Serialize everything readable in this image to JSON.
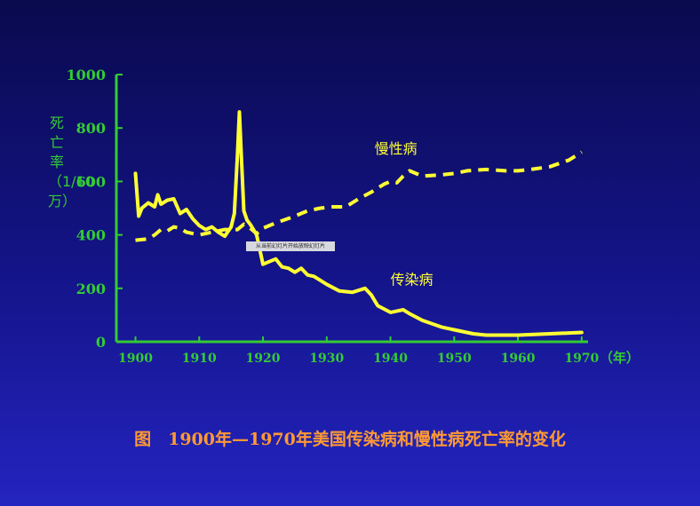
{
  "chart_data": {
    "type": "line",
    "ylabel": "死亡率（1/10万）",
    "xunit": "（年）",
    "ylim": [
      0,
      1000
    ],
    "xlim": [
      1897,
      1971
    ],
    "yticks": [
      0,
      200,
      400,
      600,
      800,
      1000
    ],
    "xticks": [
      1900,
      1910,
      1920,
      1930,
      1940,
      1950,
      1960,
      1970
    ],
    "series": [
      {
        "name": "传染病",
        "style": "solid",
        "x": [
          1900,
          1900.5,
          1901,
          1902,
          1903,
          1903.5,
          1904,
          1905,
          1906,
          1907,
          1908,
          1909,
          1910,
          1911,
          1912,
          1913,
          1914,
          1915,
          1915.5,
          1916,
          1916.3,
          1916.6,
          1917,
          1917.5,
          1918,
          1919,
          1920,
          1921,
          1922,
          1923,
          1924,
          1925,
          1926,
          1927,
          1928,
          1929,
          1930,
          1932,
          1934,
          1936,
          1937,
          1938,
          1940,
          1942,
          1943,
          1945,
          1948,
          1950,
          1953,
          1955,
          1960,
          1965,
          1970
        ],
        "y": [
          630,
          470,
          500,
          520,
          505,
          550,
          515,
          530,
          535,
          480,
          495,
          460,
          435,
          420,
          430,
          410,
          395,
          430,
          480,
          700,
          860,
          700,
          490,
          455,
          440,
          400,
          290,
          300,
          310,
          280,
          275,
          260,
          275,
          250,
          245,
          230,
          215,
          190,
          185,
          200,
          175,
          135,
          110,
          120,
          105,
          80,
          55,
          45,
          30,
          25,
          25,
          30,
          35
        ],
        "color": "#ffff33"
      },
      {
        "name": "慢性病",
        "style": "dashed",
        "x": [
          1900,
          1902,
          1903,
          1904,
          1905,
          1906,
          1907,
          1908,
          1909,
          1910,
          1912,
          1914,
          1916,
          1917,
          1918,
          1919,
          1920,
          1922,
          1925,
          1927,
          1929,
          1931,
          1933,
          1935,
          1937,
          1939,
          1940,
          1941,
          1942,
          1943,
          1945,
          1948,
          1950,
          1952,
          1955,
          1958,
          1960,
          1962,
          1965,
          1968,
          1970
        ],
        "y": [
          380,
          385,
          400,
          420,
          415,
          430,
          425,
          410,
          405,
          400,
          410,
          420,
          420,
          440,
          425,
          405,
          425,
          445,
          470,
          490,
          500,
          505,
          505,
          535,
          560,
          590,
          600,
          595,
          620,
          640,
          620,
          625,
          630,
          640,
          645,
          640,
          640,
          645,
          655,
          680,
          710
        ],
        "color": "#ffff33"
      }
    ],
    "annotations": {
      "chronic_label": "慢性病",
      "infectious_label": "传染病",
      "overlay_note": "从当前幻灯片开始放映幻灯片"
    }
  },
  "caption": "图　1900年—1970年美国传染病和慢性病死亡率的变化",
  "colors": {
    "axis": "#33cc33",
    "series": "#ffff33",
    "caption": "#ff9933"
  }
}
